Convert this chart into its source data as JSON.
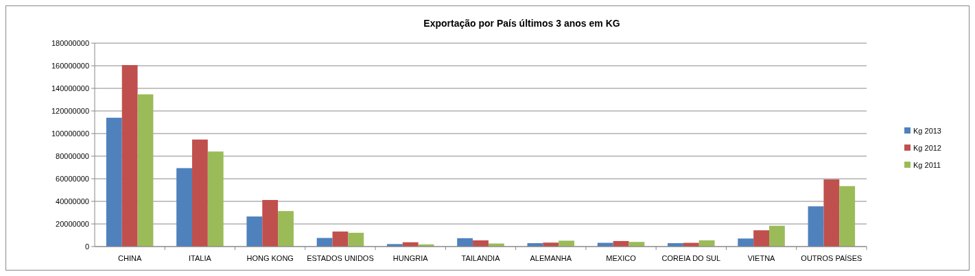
{
  "chart_data": {
    "type": "bar",
    "title": "Exportação por País últimos 3 anos em KG",
    "categories": [
      "CHINA",
      "ITALIA",
      "HONG KONG",
      "ESTADOS UNIDOS",
      "HUNGRIA",
      "TAILANDIA",
      "ALEMANHA",
      "MEXICO",
      "COREIA DO SUL",
      "VIETNA",
      "OUTROS PAÍSES"
    ],
    "series": [
      {
        "name": "Kg  2013",
        "color": "#4f81bd",
        "values": [
          114000000,
          69400000,
          26600000,
          7600000,
          2200000,
          7400000,
          3000000,
          3300000,
          3000000,
          7100000,
          35600000
        ]
      },
      {
        "name": "Kg  2012",
        "color": "#c0504d",
        "values": [
          160600000,
          94700000,
          41200000,
          13300000,
          3800000,
          5500000,
          3500000,
          4900000,
          3300000,
          14400000,
          59400000
        ]
      },
      {
        "name": "Kg  2011",
        "color": "#9bbb59",
        "values": [
          134700000,
          84100000,
          31400000,
          12200000,
          1900000,
          2700000,
          5200000,
          4100000,
          5500000,
          18400000,
          53500000
        ]
      }
    ],
    "ylim": [
      0,
      180000000
    ],
    "yticks": [
      0,
      20000000,
      40000000,
      60000000,
      80000000,
      100000000,
      120000000,
      140000000,
      160000000,
      180000000
    ],
    "grid": "y",
    "legend": "right"
  }
}
